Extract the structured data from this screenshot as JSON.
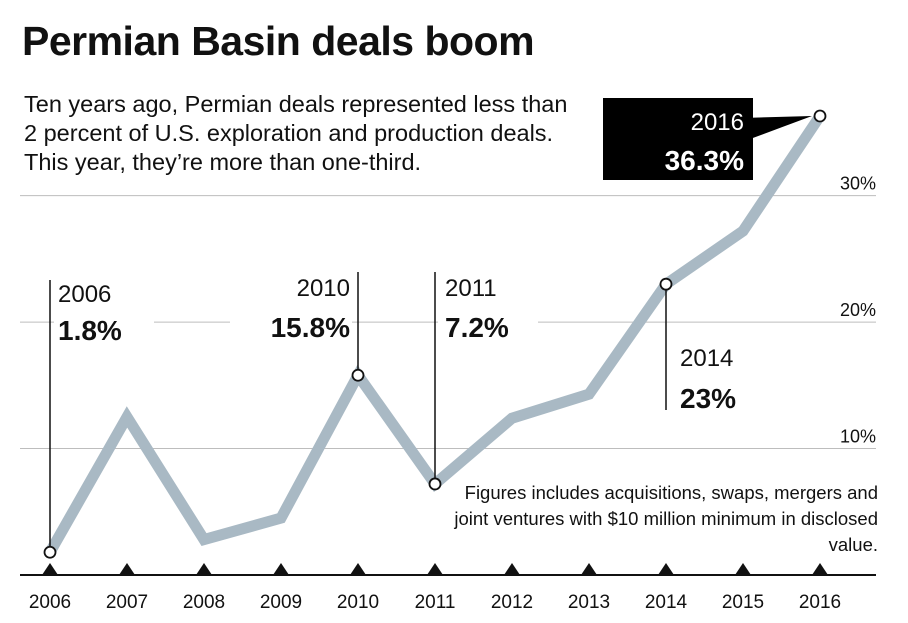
{
  "chart_data": {
    "type": "line",
    "title": "Permian Basin deals boom",
    "subtitle": "Ten years ago, Permian deals represented less than 2 percent of U.S. exploration and production deals. This year, they’re more than one-third.",
    "x": [
      "2006",
      "2007",
      "2008",
      "2009",
      "2010",
      "2011",
      "2012",
      "2013",
      "2014",
      "2015",
      "2016"
    ],
    "series": [
      {
        "values": [
          1.8,
          12.5,
          2.8,
          4.5,
          15.8,
          7.2,
          12.4,
          14.3,
          23,
          27.2,
          36.3
        ]
      }
    ],
    "ylim": [
      0,
      36.3
    ],
    "gridlines": [
      {
        "value": 10,
        "label": "10%"
      },
      {
        "value": 20,
        "label": "20%"
      },
      {
        "value": 30,
        "label": "30%"
      }
    ],
    "annotations": [
      {
        "x": "2006",
        "year": "2006",
        "value": "1.8%"
      },
      {
        "x": "2010",
        "year": "2010",
        "value": "15.8%"
      },
      {
        "x": "2011",
        "year": "2011",
        "value": "7.2%"
      },
      {
        "x": "2014",
        "year": "2014",
        "value": "23%"
      },
      {
        "x": "2016",
        "year": "2016",
        "value": "36.3%"
      }
    ],
    "footnote": "Figures includes acquisitions, swaps, mergers and joint ventures with $10 million minimum in disclosed value.",
    "colors": {
      "line": "#a9b9c4",
      "axis": "#111111",
      "grid": "#bdbdbd",
      "callout_box": "#000000"
    },
    "grid": true,
    "legend": "none"
  }
}
